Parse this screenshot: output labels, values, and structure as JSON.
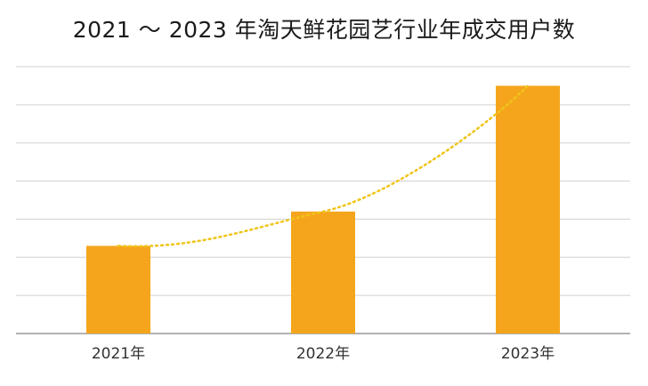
{
  "chart_data": {
    "type": "bar",
    "title": "2021 ～ 2023 年淘天鲜花园艺行业年成交用户数",
    "categories": [
      "2021年",
      "2022年",
      "2023年"
    ],
    "values": [
      23,
      32,
      65
    ],
    "ylim": [
      0,
      70
    ],
    "grid": true,
    "trendline": "dotted",
    "colors": {
      "bar": "#f5a51b",
      "trend": "#f0c419",
      "grid": "#d0d0d0",
      "axis": "#999999"
    }
  }
}
